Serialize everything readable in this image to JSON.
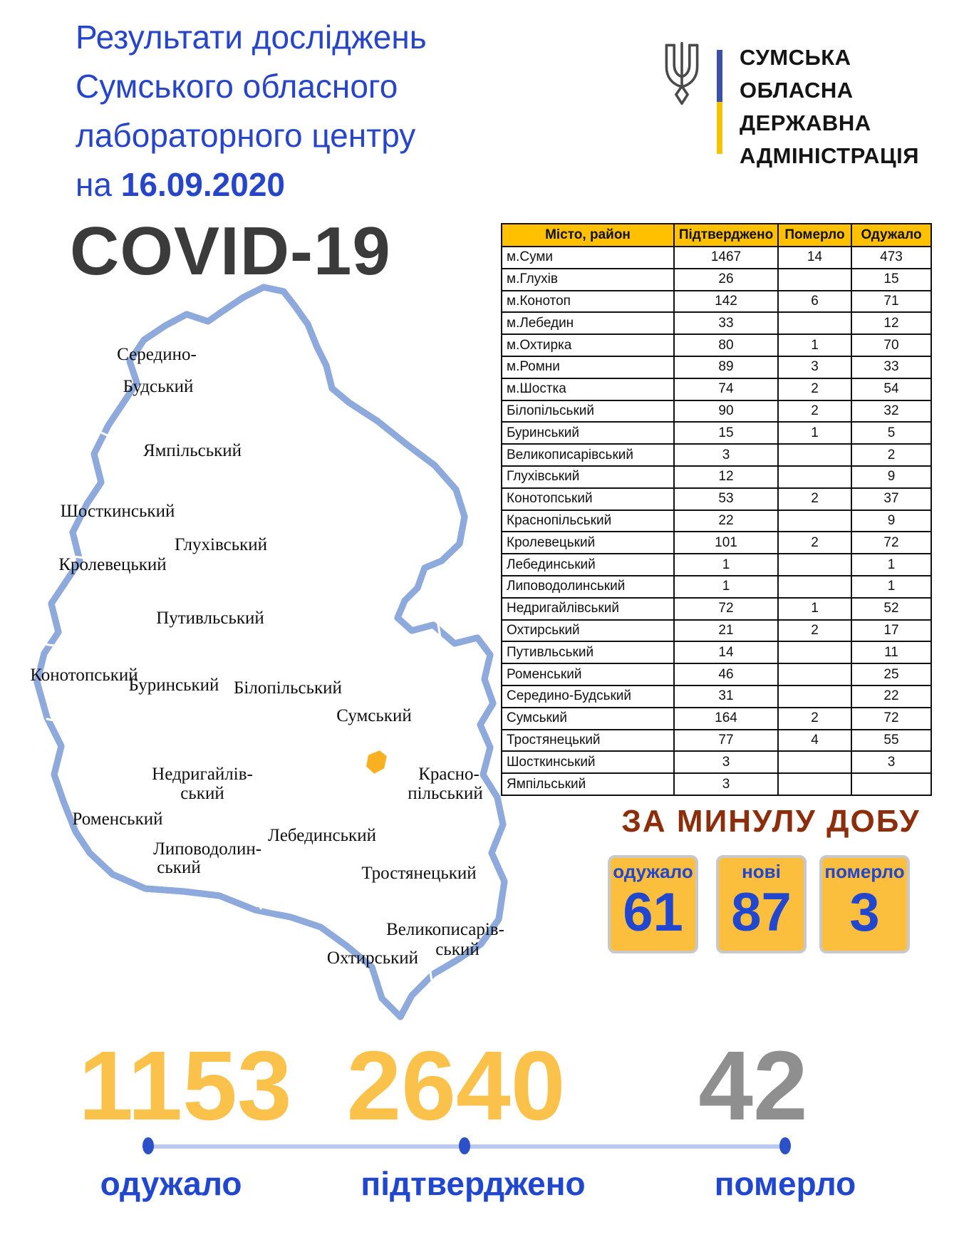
{
  "header": {
    "title_lines": [
      "Результати досліджень",
      "Сумського обласного",
      "лабораторного центру"
    ],
    "title_line4_prefix": "на ",
    "title_date": "16.09.2020",
    "covid_title": "COVID-19",
    "title_color": "#2645C8"
  },
  "logo": {
    "org_lines": [
      "СУМСЬКА",
      "ОБЛАСНА",
      "ДЕРЖАВНА",
      "АДМІНІСТРАЦІЯ"
    ],
    "flag_top_color": "#3C50A5",
    "flag_bottom_color": "#F4C300"
  },
  "table": {
    "headers": [
      "Місто, район",
      "Підтверджено",
      "Померло",
      "Одужало"
    ],
    "header_bg": "#FFC000",
    "rows": [
      [
        "м.Суми",
        "1467",
        "14",
        "473"
      ],
      [
        "м.Глухів",
        "26",
        "",
        "15"
      ],
      [
        "м.Конотоп",
        "142",
        "6",
        "71"
      ],
      [
        "м.Лебедин",
        "33",
        "",
        "12"
      ],
      [
        "м.Охтирка",
        "80",
        "1",
        "70"
      ],
      [
        "м.Ромни",
        "89",
        "3",
        "33"
      ],
      [
        "м.Шостка",
        "74",
        "2",
        "54"
      ],
      [
        "Білопільський",
        "90",
        "2",
        "32"
      ],
      [
        "Буринський",
        "15",
        "1",
        "5"
      ],
      [
        "Великописарівський",
        "3",
        "",
        "2"
      ],
      [
        "Глухівський",
        "12",
        "",
        "9"
      ],
      [
        "Конотопський",
        "53",
        "2",
        "37"
      ],
      [
        "Краснопільський",
        "22",
        "",
        "9"
      ],
      [
        "Кролевецький",
        "101",
        "2",
        "72"
      ],
      [
        "Лебединський",
        "1",
        "",
        "1"
      ],
      [
        "Липоводолинський",
        "1",
        "",
        "1"
      ],
      [
        "Недригайлівський",
        "72",
        "1",
        "52"
      ],
      [
        "Охтирський",
        "21",
        "2",
        "17"
      ],
      [
        "Путивльський",
        "14",
        "",
        "11"
      ],
      [
        "Роменський",
        "46",
        "",
        "25"
      ],
      [
        "Середино-Будський",
        "31",
        "",
        "22"
      ],
      [
        "Сумський",
        "164",
        "2",
        "72"
      ],
      [
        "Тростянецький",
        "77",
        "4",
        "55"
      ],
      [
        "Шосткинський",
        "3",
        "",
        "3"
      ],
      [
        "Ямпільський",
        "3",
        "",
        ""
      ]
    ]
  },
  "map": {
    "region": "Сумська область",
    "fill_color": "#FBC45B",
    "border_color": "#8EA9DC",
    "labels": [
      "Середино-",
      "Будський",
      "Ямпільський",
      "Шосткинський",
      "Глухівський",
      "Кролевецький",
      "Путивльський",
      "Конотопський",
      "Буринський",
      "Білопільський",
      "Сумський",
      "Недригайлів-",
      "ський",
      "Красно-",
      "пільський",
      "Роменський",
      "Лебединський",
      "Липоводолин-",
      "ський",
      "Тростянецький",
      "Охтирський",
      "Великописарів-",
      "ський"
    ]
  },
  "daily": {
    "heading": "ЗА МИНУЛУ ДОБУ",
    "heading_color": "#8C2E0B",
    "card_bg": "#FBBF3D",
    "cards": [
      {
        "label": "одужало",
        "value": "61"
      },
      {
        "label": "нові",
        "value": "87"
      },
      {
        "label": "померло",
        "value": "3"
      }
    ]
  },
  "totals": {
    "items": [
      {
        "value": "1153",
        "label": "одужало",
        "color": "#FBC24B"
      },
      {
        "value": "2640",
        "label": "підтверджено",
        "color": "#FBC24B"
      },
      {
        "value": "42",
        "label": "померло",
        "color": "#8F8F8F"
      }
    ]
  }
}
